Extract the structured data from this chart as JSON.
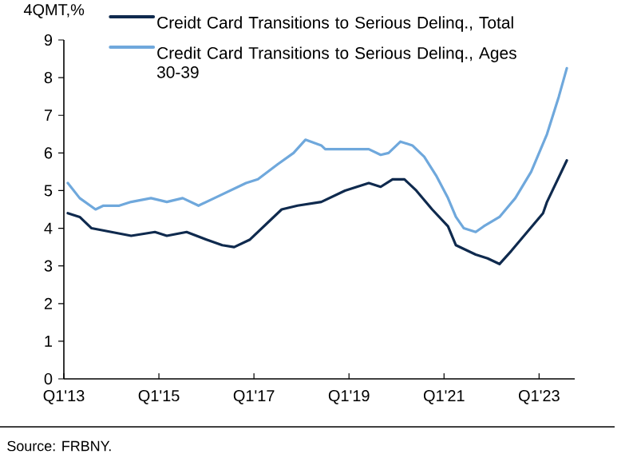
{
  "chart_data": {
    "type": "line",
    "ylabel": "4QMT,%",
    "xlim": [
      "2013-01",
      "2023-10"
    ],
    "xticks": [
      {
        "value": "2013-01",
        "label": "Q1'13"
      },
      {
        "value": "2015-01",
        "label": "Q1'15"
      },
      {
        "value": "2017-01",
        "label": "Q1'17"
      },
      {
        "value": "2019-01",
        "label": "Q1'19"
      },
      {
        "value": "2021-01",
        "label": "Q1'21"
      },
      {
        "value": "2023-01",
        "label": "Q1'23"
      }
    ],
    "ylim": [
      0,
      9
    ],
    "yticks": [
      0,
      1,
      2,
      3,
      4,
      5,
      6,
      7,
      8,
      9
    ],
    "legend": "top",
    "marker": "none",
    "line_style": "solid",
    "series": [
      {
        "name": "Creidt Card Transitions to Serious Delinq., Total",
        "color": "#0f2a4e",
        "x": [
          "2013-02",
          "2013-05",
          "2013-08",
          "2014-01",
          "2014-06",
          "2014-12",
          "2015-03",
          "2015-08",
          "2016-01",
          "2016-05",
          "2016-08",
          "2016-12",
          "2017-04",
          "2017-08",
          "2017-12",
          "2018-06",
          "2018-08",
          "2018-12",
          "2019-06",
          "2019-09",
          "2019-12",
          "2020-03",
          "2020-06",
          "2020-10",
          "2021-02",
          "2021-04",
          "2021-09",
          "2021-12",
          "2022-03",
          "2022-06",
          "2022-10",
          "2023-02",
          "2023-03",
          "2023-08"
        ],
        "values": [
          4.4,
          4.3,
          4.0,
          3.9,
          3.8,
          3.9,
          3.8,
          3.9,
          3.7,
          3.55,
          3.5,
          3.7,
          4.1,
          4.5,
          4.6,
          4.7,
          4.8,
          5.0,
          5.2,
          5.1,
          5.3,
          5.3,
          5.0,
          4.5,
          4.05,
          3.55,
          3.3,
          3.2,
          3.05,
          3.4,
          3.9,
          4.4,
          4.7,
          5.8
        ]
      },
      {
        "name": "Credit Card Transitions to Serious Delinq., Ages 30-39",
        "color": "#6fa8dc",
        "x": [
          "2013-02",
          "2013-05",
          "2013-09",
          "2013-11",
          "2014-03",
          "2014-06",
          "2014-11",
          "2015-03",
          "2015-07",
          "2015-11",
          "2016-03",
          "2016-07",
          "2016-11",
          "2017-02",
          "2017-07",
          "2017-11",
          "2018-02",
          "2018-06",
          "2018-07",
          "2018-12",
          "2019-06",
          "2019-09",
          "2019-11",
          "2020-02",
          "2020-05",
          "2020-08",
          "2020-11",
          "2021-02",
          "2021-04",
          "2021-06",
          "2021-09",
          "2021-11",
          "2022-03",
          "2022-07",
          "2022-11",
          "2023-03",
          "2023-06",
          "2023-08"
        ],
        "values": [
          5.2,
          4.8,
          4.5,
          4.6,
          4.6,
          4.7,
          4.8,
          4.7,
          4.8,
          4.6,
          4.8,
          5.0,
          5.2,
          5.3,
          5.7,
          6.0,
          6.35,
          6.2,
          6.1,
          6.1,
          6.1,
          5.95,
          6.0,
          6.3,
          6.2,
          5.9,
          5.4,
          4.8,
          4.3,
          4.0,
          3.9,
          4.05,
          4.3,
          4.8,
          5.5,
          6.5,
          7.5,
          8.25
        ]
      }
    ],
    "annotations": [
      "Source: FRBNY."
    ]
  }
}
